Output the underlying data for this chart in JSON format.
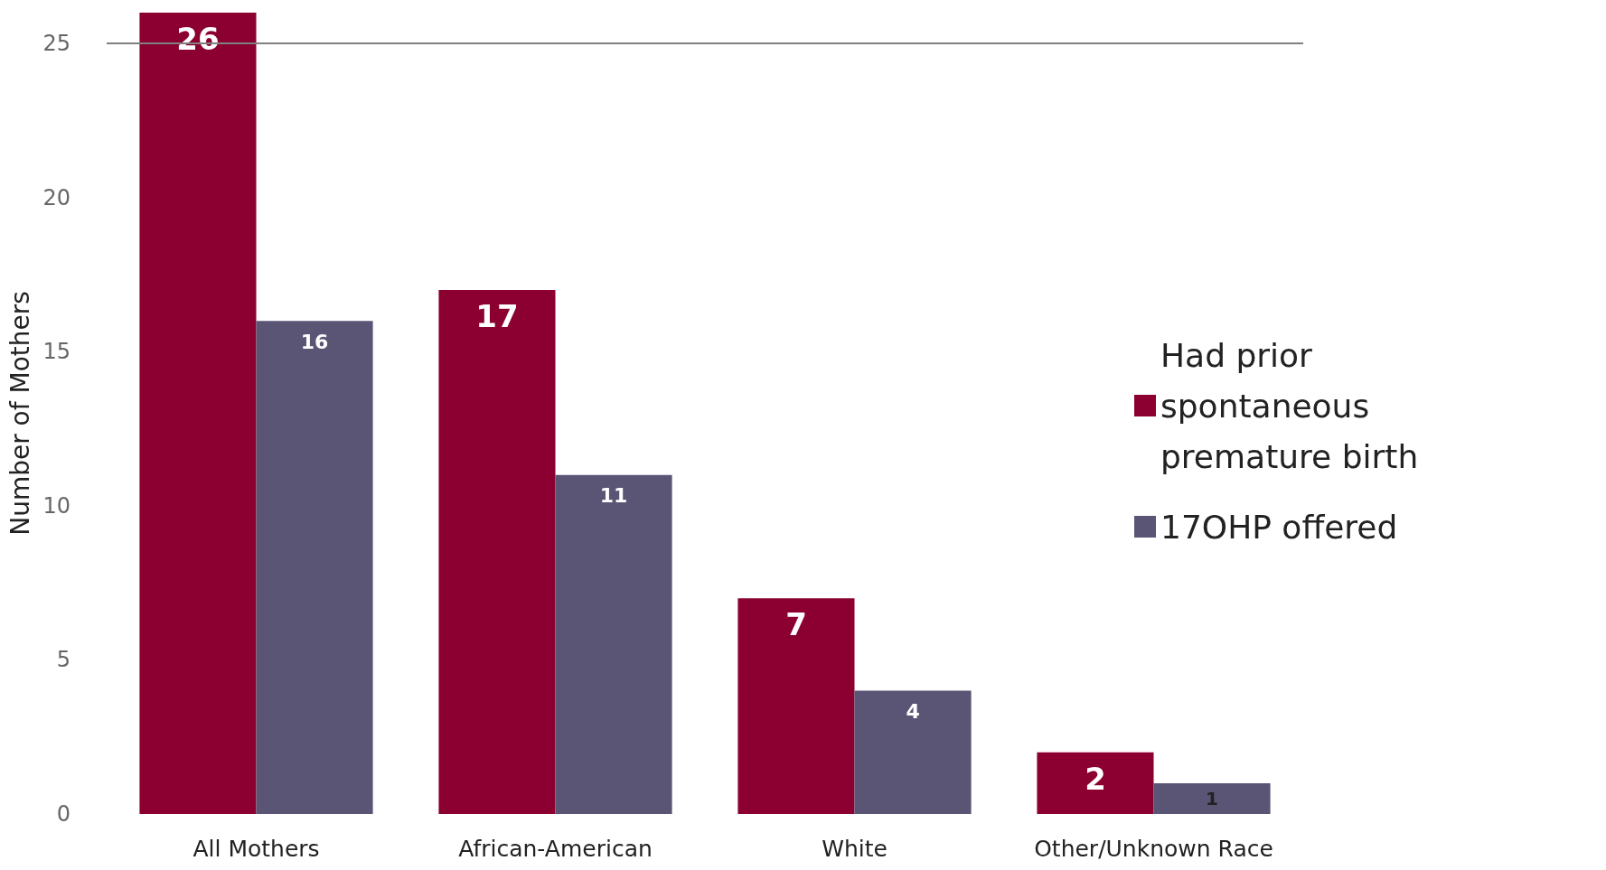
{
  "chart_data": {
    "type": "bar",
    "ylabel": "Number of Mothers",
    "categories": [
      "All Mothers",
      "African-American",
      "White",
      "Other/Unknown Race"
    ],
    "series": [
      {
        "name": "Had prior spontaneous premature birth",
        "color": "#8b0030",
        "values": [
          26,
          17,
          7,
          2
        ]
      },
      {
        "name": "17OHP offered",
        "color": "#5a5475",
        "values": [
          16,
          11,
          4,
          1
        ]
      }
    ],
    "ylim": [
      0,
      26
    ],
    "yticks": [
      0,
      5,
      10,
      15,
      20,
      25
    ],
    "grid": false,
    "legend": "right",
    "data_labels": true,
    "ref_lines": [
      {
        "axis": "y",
        "value": 25,
        "color": "#808080"
      }
    ]
  }
}
